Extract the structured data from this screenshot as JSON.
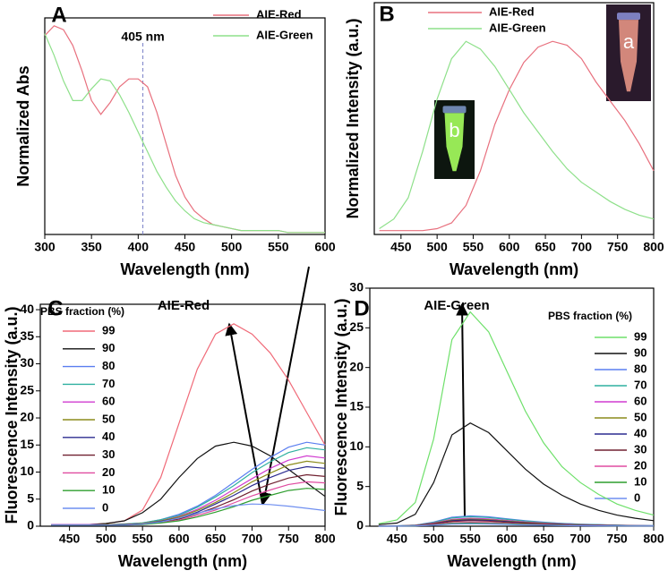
{
  "chart_data": [
    {
      "type": "line",
      "panel_label": "A",
      "x_label": "Wavelength (nm)",
      "y_label": "Normalized Abs",
      "x": [
        300,
        310,
        320,
        330,
        340,
        350,
        360,
        370,
        380,
        390,
        400,
        410,
        420,
        430,
        440,
        450,
        460,
        470,
        480,
        490,
        500,
        510,
        520,
        530,
        540,
        550,
        560,
        570,
        580,
        590,
        600
      ],
      "xlim": [
        300,
        600
      ],
      "xticks": [
        300,
        350,
        400,
        450,
        500,
        550,
        600
      ],
      "ylim": [
        0,
        1.1
      ],
      "series": [
        {
          "name": "AIE-Red",
          "color": "#e8707e",
          "values": [
            1.01,
            1.06,
            1.04,
            0.96,
            0.83,
            0.68,
            0.61,
            0.67,
            0.75,
            0.79,
            0.79,
            0.75,
            0.62,
            0.46,
            0.3,
            0.19,
            0.12,
            0.08,
            0.05,
            0.04,
            0.03,
            0.02,
            0.02,
            0.02,
            0.02,
            0.02,
            0.01,
            0.01,
            0.01,
            0.01,
            0.01
          ]
        },
        {
          "name": "AIE-Green",
          "color": "#8ee08a",
          "values": [
            1.02,
            0.91,
            0.78,
            0.68,
            0.68,
            0.74,
            0.79,
            0.78,
            0.71,
            0.62,
            0.52,
            0.42,
            0.32,
            0.24,
            0.17,
            0.12,
            0.08,
            0.06,
            0.05,
            0.04,
            0.03,
            0.02,
            0.02,
            0.02,
            0.02,
            0.02,
            0.01,
            0.01,
            0.01,
            0.01,
            0.01
          ]
        }
      ],
      "annotations": [
        {
          "text": "405 nm",
          "x": 405
        }
      ]
    },
    {
      "type": "line",
      "panel_label": "B",
      "x_label": "Wavelength (nm)",
      "y_label": "Normalized Intensity (a.u.)",
      "x": [
        420,
        440,
        460,
        480,
        500,
        520,
        540,
        560,
        580,
        600,
        620,
        640,
        660,
        680,
        700,
        720,
        740,
        760,
        780,
        800
      ],
      "xlim": [
        413,
        800
      ],
      "xticks": [
        450,
        500,
        550,
        600,
        650,
        700,
        750,
        800
      ],
      "ylim": [
        0,
        1.2
      ],
      "series": [
        {
          "name": "AIE-Red",
          "color": "#e8707e",
          "values": [
            0.02,
            0.02,
            0.02,
            0.02,
            0.03,
            0.06,
            0.15,
            0.33,
            0.57,
            0.75,
            0.89,
            0.97,
            1.0,
            0.98,
            0.91,
            0.79,
            0.69,
            0.59,
            0.47,
            0.33
          ]
        },
        {
          "name": "AIE-Green",
          "color": "#8ee08a",
          "values": [
            0.03,
            0.08,
            0.19,
            0.43,
            0.7,
            0.91,
            1.0,
            0.96,
            0.87,
            0.75,
            0.63,
            0.53,
            0.43,
            0.34,
            0.27,
            0.22,
            0.17,
            0.13,
            0.1,
            0.08
          ]
        }
      ],
      "insets": [
        {
          "label": "a"
        },
        {
          "label": "b"
        }
      ]
    },
    {
      "type": "line",
      "panel_label": "C",
      "title": "AIE-Red",
      "x_label": "Wavelength (nm)",
      "y_label": "Fluorescence Intensity (a.u.)",
      "legend_title": "PBS fraction (%)",
      "x": [
        425,
        450,
        475,
        500,
        525,
        550,
        575,
        600,
        625,
        650,
        675,
        700,
        725,
        750,
        775,
        800
      ],
      "xlim": [
        410,
        800
      ],
      "xticks": [
        450,
        500,
        550,
        600,
        650,
        700,
        750,
        800
      ],
      "ylim": [
        0,
        41
      ],
      "yticks": [
        0,
        5,
        10,
        15,
        20,
        25,
        30,
        35,
        40
      ],
      "series": [
        {
          "name": "99",
          "color": "#f06a78",
          "values": [
            0.2,
            0.2,
            0.3,
            0.5,
            1,
            3,
            9,
            19,
            29,
            35.5,
            37.4,
            35.5,
            32,
            27,
            21,
            15
          ]
        },
        {
          "name": "90",
          "color": "#111111",
          "values": [
            0.2,
            0.2,
            0.3,
            0.5,
            1,
            2.5,
            5,
            9,
            12.5,
            14.8,
            15.5,
            14.8,
            13,
            10.5,
            8,
            5.5
          ]
        },
        {
          "name": "80",
          "color": "#5a7ef0",
          "values": [
            0.3,
            0.3,
            0.3,
            0.3,
            0.4,
            0.6,
            1.2,
            2.2,
            3.7,
            5.7,
            8.1,
            10.5,
            12.7,
            14.6,
            15.5,
            15.0
          ]
        },
        {
          "name": "70",
          "color": "#2fb0a0",
          "values": [
            0.3,
            0.3,
            0.3,
            0.3,
            0.4,
            0.6,
            1.2,
            2.0,
            3.5,
            5.4,
            7.5,
            9.9,
            11.9,
            13.6,
            14.5,
            14.1
          ]
        },
        {
          "name": "60",
          "color": "#d03cd0",
          "values": [
            0.3,
            0.3,
            0.3,
            0.3,
            0.3,
            0.5,
            1.0,
            1.8,
            3.1,
            4.8,
            6.8,
            8.8,
            10.7,
            12.2,
            13.0,
            12.6
          ]
        },
        {
          "name": "50",
          "color": "#8c8c1c",
          "values": [
            0.2,
            0.2,
            0.2,
            0.3,
            0.3,
            0.5,
            1.0,
            1.7,
            2.9,
            4.4,
            6.2,
            8.2,
            9.8,
            11.3,
            12.0,
            11.6
          ]
        },
        {
          "name": "40",
          "color": "#2c2c90",
          "values": [
            0.2,
            0.2,
            0.2,
            0.2,
            0.3,
            0.4,
            0.9,
            1.5,
            2.6,
            4.1,
            5.7,
            7.5,
            9.0,
            10.3,
            11.0,
            10.7
          ]
        },
        {
          "name": "30",
          "color": "#702030",
          "values": [
            0.2,
            0.2,
            0.2,
            0.2,
            0.3,
            0.4,
            0.8,
            1.3,
            2.3,
            3.5,
            4.9,
            6.5,
            7.8,
            8.9,
            9.5,
            9.2
          ]
        },
        {
          "name": "20",
          "color": "#e04ca0",
          "values": [
            0.2,
            0.2,
            0.2,
            0.2,
            0.2,
            0.3,
            0.7,
            1.1,
            2.0,
            3.0,
            4.3,
            5.6,
            6.7,
            7.7,
            8.2,
            8.0
          ]
        },
        {
          "name": "10",
          "color": "#2e9e2e",
          "values": [
            0.2,
            0.2,
            0.2,
            0.2,
            0.2,
            0.3,
            0.6,
            1.0,
            1.7,
            2.6,
            3.6,
            4.8,
            5.7,
            6.6,
            7.0,
            6.8
          ]
        },
        {
          "name": "0",
          "color": "#6f8ff0",
          "values": [
            0.2,
            0.2,
            0.2,
            0.2,
            0.2,
            0.4,
            0.8,
            1.5,
            2.4,
            3.2,
            3.8,
            4.1,
            4.0,
            3.7,
            3.3,
            2.9
          ]
        }
      ]
    },
    {
      "type": "line",
      "panel_label": "D",
      "title": "AIE-Green",
      "x_label": "Wavelength (nm)",
      "y_label": "Fluorescence Intensity (a.u.)",
      "legend_title": "PBS fraction (%)",
      "x": [
        425,
        450,
        475,
        500,
        525,
        550,
        575,
        600,
        625,
        650,
        675,
        700,
        725,
        750,
        775,
        800
      ],
      "xlim": [
        413,
        800
      ],
      "xticks": [
        450,
        500,
        550,
        600,
        650,
        700,
        750,
        800
      ],
      "ylim": [
        0,
        30
      ],
      "yticks": [
        0,
        5,
        10,
        15,
        20,
        25,
        30
      ],
      "series": [
        {
          "name": "99",
          "color": "#6ee06a",
          "values": [
            0.3,
            0.8,
            3,
            11,
            23.5,
            27,
            24.5,
            19.5,
            14.5,
            10.5,
            7.5,
            5.5,
            4,
            2.8,
            2,
            1.4
          ]
        },
        {
          "name": "90",
          "color": "#111111",
          "values": [
            0.2,
            0.4,
            1.5,
            5.5,
            11.5,
            13,
            11.8,
            9.5,
            7.2,
            5.3,
            3.9,
            2.8,
            2,
            1.4,
            1,
            0.7
          ]
        },
        {
          "name": "80",
          "color": "#5a7ef0",
          "values": [
            0.01,
            0.04,
            0.14,
            0.53,
            1.13,
            1.3,
            1.18,
            0.94,
            0.7,
            0.51,
            0.36,
            0.26,
            0.2,
            0.13,
            0.09,
            0.07
          ]
        },
        {
          "name": "70",
          "color": "#2fb0a0",
          "values": [
            0.01,
            0.04,
            0.13,
            0.49,
            1.04,
            1.2,
            1.09,
            0.86,
            0.65,
            0.47,
            0.34,
            0.24,
            0.18,
            0.12,
            0.08,
            0.06
          ]
        },
        {
          "name": "60",
          "color": "#d03cd0",
          "values": [
            0.01,
            0.03,
            0.11,
            0.41,
            0.87,
            1.0,
            0.91,
            0.72,
            0.54,
            0.39,
            0.28,
            0.2,
            0.15,
            0.1,
            0.07,
            0.05
          ]
        },
        {
          "name": "50",
          "color": "#8c8c1c",
          "values": [
            0.01,
            0.03,
            0.1,
            0.37,
            0.78,
            0.9,
            0.82,
            0.65,
            0.49,
            0.35,
            0.25,
            0.18,
            0.14,
            0.09,
            0.06,
            0.05
          ]
        },
        {
          "name": "40",
          "color": "#2c2c90",
          "values": [
            0.01,
            0.02,
            0.09,
            0.33,
            0.7,
            0.8,
            0.73,
            0.58,
            0.43,
            0.31,
            0.22,
            0.16,
            0.12,
            0.08,
            0.06,
            0.04
          ]
        },
        {
          "name": "30",
          "color": "#702030",
          "values": [
            0.01,
            0.02,
            0.08,
            0.29,
            0.61,
            0.7,
            0.64,
            0.5,
            0.38,
            0.27,
            0.2,
            0.14,
            0.11,
            0.07,
            0.05,
            0.04
          ]
        },
        {
          "name": "20",
          "color": "#e04ca0",
          "values": [
            0.01,
            0.02,
            0.06,
            0.21,
            0.44,
            0.5,
            0.46,
            0.36,
            0.27,
            0.2,
            0.14,
            0.1,
            0.08,
            0.05,
            0.04,
            0.03
          ]
        },
        {
          "name": "10",
          "color": "#2e9e2e",
          "values": [
            0,
            0.01,
            0.04,
            0.16,
            0.35,
            0.4,
            0.36,
            0.29,
            0.22,
            0.16,
            0.11,
            0.08,
            0.06,
            0.04,
            0.03,
            0.02
          ]
        },
        {
          "name": "0",
          "color": "#6f8ff0",
          "values": [
            0,
            0.01,
            0.03,
            0.12,
            0.26,
            0.3,
            0.27,
            0.22,
            0.16,
            0.12,
            0.08,
            0.06,
            0.05,
            0.03,
            0.02,
            0.02
          ]
        }
      ]
    }
  ]
}
